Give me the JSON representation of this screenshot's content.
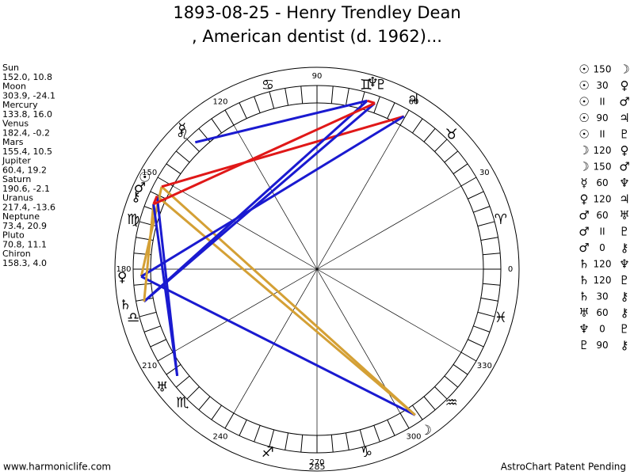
{
  "title": [
    "1893-08-25 - Henry Trendley Dean",
    ", American dentist (d. 1962)..."
  ],
  "planets": [
    {
      "name": "Sun",
      "glyph": "☉",
      "position": "152.0, 10.8"
    },
    {
      "name": "Moon",
      "glyph": "☽",
      "position": "303.9, -24.1"
    },
    {
      "name": "Mercury",
      "glyph": "☿",
      "position": "133.8, 16.0"
    },
    {
      "name": "Venus",
      "glyph": "♀",
      "position": "182.4, -0.2"
    },
    {
      "name": "Mars",
      "glyph": "♂",
      "position": "155.4, 10.5"
    },
    {
      "name": "Jupiter",
      "glyph": "♃",
      "position": "60.4, 19.2"
    },
    {
      "name": "Saturn",
      "glyph": "♄",
      "position": "190.6, -2.1"
    },
    {
      "name": "Uranus",
      "glyph": "♅",
      "position": "217.4, -13.6"
    },
    {
      "name": "Neptune",
      "glyph": "♆",
      "position": "73.4, 20.9"
    },
    {
      "name": "Pluto",
      "glyph": "♇",
      "position": "70.8, 11.1"
    },
    {
      "name": "Chiron",
      "glyph": "⚷",
      "position": "158.3, 4.0"
    }
  ],
  "signs": [
    "♈",
    "♉",
    "♊",
    "♋",
    "♌",
    "♍",
    "♎",
    "♏",
    "♐",
    "♑",
    "♒",
    "♓"
  ],
  "degree_labels": [
    0,
    30,
    60,
    90,
    120,
    150,
    180,
    210,
    240,
    270,
    300,
    330
  ],
  "bottom_label": "285",
  "aspects": [
    {
      "from": "☉",
      "aspect": "150",
      "to": "☽",
      "color": "#d4a035"
    },
    {
      "from": "☉",
      "aspect": "30",
      "to": "♀",
      "color": "#d4a035"
    },
    {
      "from": "☉",
      "aspect": "II",
      "to": "♂"
    },
    {
      "from": "☉",
      "aspect": "90",
      "to": "♃",
      "color": "#e01818"
    },
    {
      "from": "☉",
      "aspect": "II",
      "to": "♇"
    },
    {
      "from": "☽",
      "aspect": "120",
      "to": "♀",
      "color": "#1a1ad0"
    },
    {
      "from": "☽",
      "aspect": "150",
      "to": "♂",
      "color": "#d4a035"
    },
    {
      "from": "☿",
      "aspect": "60",
      "to": "♆",
      "color": "#1a1ad0"
    },
    {
      "from": "♀",
      "aspect": "120",
      "to": "♃",
      "color": "#1a1ad0"
    },
    {
      "from": "♂",
      "aspect": "60",
      "to": "♅",
      "color": "#1a1ad0"
    },
    {
      "from": "♂",
      "aspect": "II",
      "to": "♇"
    },
    {
      "from": "♂",
      "aspect": "0",
      "to": "⚷",
      "color": "#e01818"
    },
    {
      "from": "♄",
      "aspect": "120",
      "to": "♆",
      "color": "#1a1ad0"
    },
    {
      "from": "♄",
      "aspect": "120",
      "to": "♇",
      "color": "#1a1ad0"
    },
    {
      "from": "♄",
      "aspect": "30",
      "to": "⚷",
      "color": "#d4a035"
    },
    {
      "from": "♅",
      "aspect": "60",
      "to": "⚷",
      "color": "#1a1ad0"
    },
    {
      "from": "♆",
      "aspect": "0",
      "to": "♇",
      "color": "#e01818"
    },
    {
      "from": "♇",
      "aspect": "90",
      "to": "⚷",
      "color": "#e01818"
    }
  ],
  "footer": {
    "left": "www.harmoniclife.com",
    "right": "AstroChart Patent Pending"
  }
}
